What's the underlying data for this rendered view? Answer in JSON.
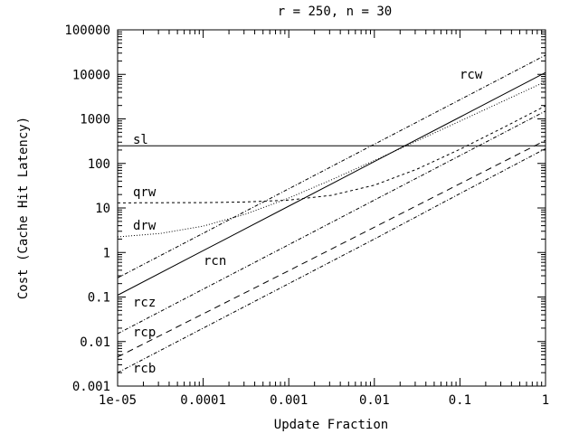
{
  "chart_data": {
    "type": "line",
    "title": "r = 250, n = 30",
    "xlabel": "Update Fraction",
    "ylabel": "Cost (Cache Hit Latency)",
    "xscale": "log",
    "yscale": "log",
    "xlim": [
      1e-05,
      1
    ],
    "ylim": [
      0.001,
      100000
    ],
    "grid": false,
    "legend": "inline labels",
    "xticks": [
      "1e-05",
      "0.0001",
      "0.001",
      "0.01",
      "0.1",
      "1"
    ],
    "yticks": [
      "0.001",
      "0.01",
      "0.1",
      "1",
      "10",
      "100",
      "1000",
      "10000",
      "100000"
    ],
    "series": [
      {
        "name": "rcw",
        "style": "dashdot",
        "x": [
          1e-05,
          0.0001,
          0.001,
          0.01,
          0.1,
          1
        ],
        "y": [
          0.27,
          2.7,
          27,
          270,
          2700,
          27000
        ]
      },
      {
        "name": "rcn",
        "style": "solid",
        "x": [
          1e-05,
          0.0001,
          0.001,
          0.01,
          0.1,
          1
        ],
        "y": [
          0.11,
          1.1,
          11,
          110,
          1100,
          11000
        ]
      },
      {
        "name": "sl",
        "style": "solid",
        "x": [
          1e-05,
          1
        ],
        "y": [
          250,
          250
        ]
      },
      {
        "name": "qrw",
        "style": "dashed-fine",
        "x": [
          1e-05,
          3.16e-05,
          0.0001,
          0.000316,
          0.001,
          0.00316,
          0.01,
          0.0316,
          0.1,
          0.316,
          1
        ],
        "y": [
          13.0,
          13.1,
          13.2,
          13.6,
          15.0,
          19.2,
          32.5,
          74.7,
          208,
          630,
          1963
        ]
      },
      {
        "name": "drw",
        "style": "dotted",
        "x": [
          1e-05,
          3.16e-05,
          0.0001,
          0.000316,
          0.001,
          0.00316,
          0.01,
          0.0316,
          0.1,
          0.316,
          1
        ],
        "y": [
          2.24,
          2.68,
          3.9,
          7.3,
          16.7,
          43.1,
          116.5,
          321,
          891,
          2479,
          6902
        ]
      },
      {
        "name": "rcz",
        "style": "dashdot",
        "x": [
          1e-05,
          0.0001,
          0.001,
          0.01,
          0.1,
          1
        ],
        "y": [
          0.015,
          0.15,
          1.5,
          15,
          150,
          1500
        ]
      },
      {
        "name": "rcp",
        "style": "dashed",
        "x": [
          1e-05,
          0.0001,
          0.001,
          0.01,
          0.1,
          1
        ],
        "y": [
          0.0045,
          0.042,
          0.39,
          3.7,
          35,
          330
        ]
      },
      {
        "name": "rcb",
        "style": "dashdot",
        "x": [
          1e-05,
          0.0001,
          0.001,
          0.01,
          0.1,
          1
        ],
        "y": [
          0.002,
          0.02,
          0.2,
          2,
          21,
          215
        ]
      }
    ]
  }
}
